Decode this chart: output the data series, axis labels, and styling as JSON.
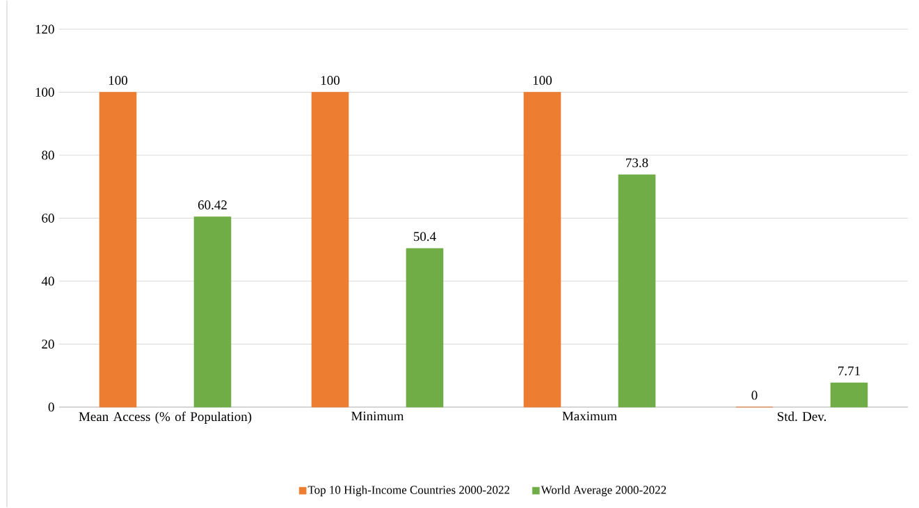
{
  "chart_data": {
    "type": "bar",
    "categories": [
      "Mean Access (% of Population)",
      "Minimum",
      "Maximum",
      "Std. Dev."
    ],
    "series": [
      {
        "name": "Top 10 High-Income Countries 2000-2022",
        "color": "#ed7d31",
        "values": [
          100,
          100,
          100,
          0
        ]
      },
      {
        "name": "World Average 2000-2022",
        "color": "#70ad47",
        "values": [
          60.42,
          50.4,
          73.8,
          7.71
        ]
      }
    ],
    "ylim": [
      0,
      120
    ],
    "yticks": [
      0,
      20,
      40,
      60,
      80,
      100,
      120
    ],
    "grid": "y",
    "legend": "bottom",
    "data_labels": true
  }
}
